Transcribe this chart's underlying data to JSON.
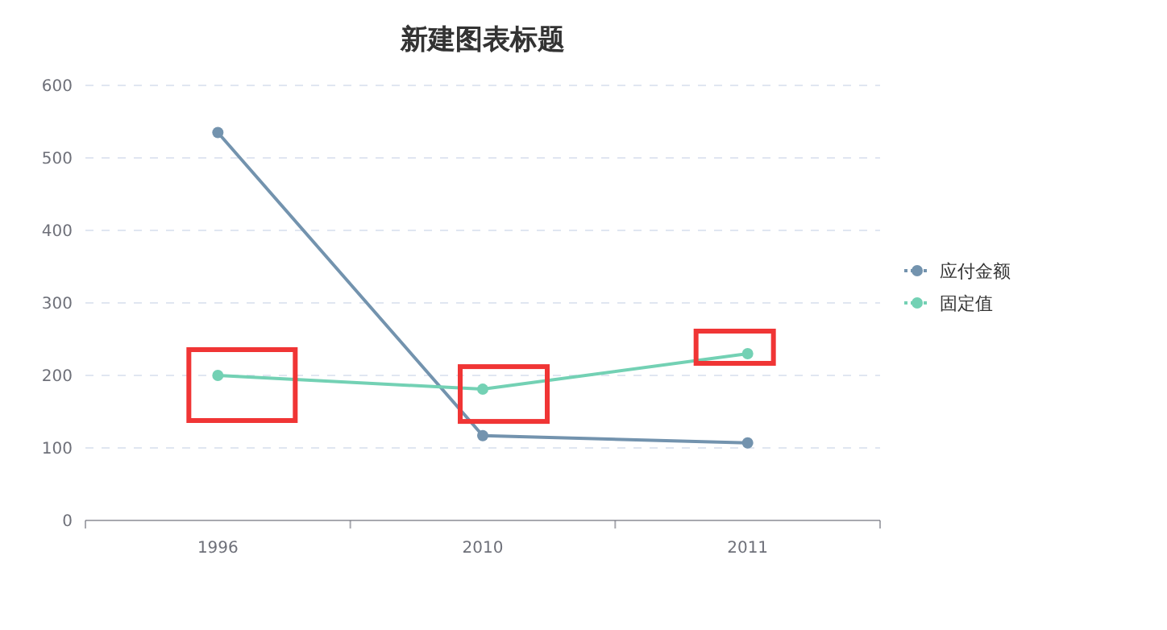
{
  "chart_data": {
    "type": "line",
    "title": "新建图表标题",
    "categories": [
      "1996",
      "2010",
      "2011"
    ],
    "series": [
      {
        "name": "应付金额",
        "color": "#7393ae",
        "values": [
          535,
          117,
          107
        ]
      },
      {
        "name": "固定值",
        "color": "#73d1b4",
        "values": [
          200,
          181,
          230
        ]
      }
    ],
    "ylim": [
      0,
      600
    ],
    "yticks": [
      0,
      100,
      200,
      300,
      400,
      500,
      600
    ],
    "grid": "y",
    "legend": "right",
    "marker": "circle",
    "line_style": "solid"
  }
}
